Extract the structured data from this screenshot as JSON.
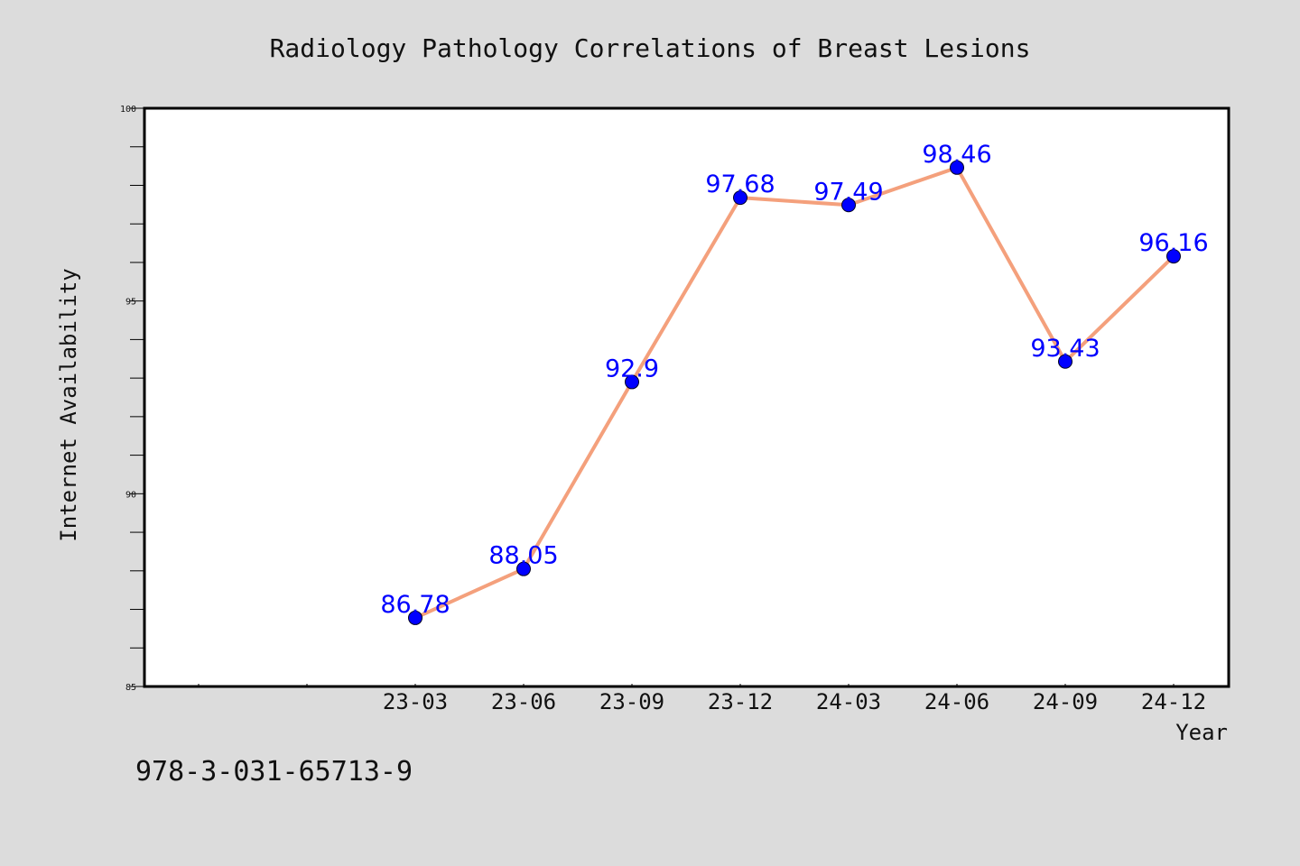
{
  "chart_data": {
    "type": "line",
    "title": "Radiology Pathology Correlations of Breast Lesions",
    "xlabel": "Year",
    "ylabel": "Internet Availability",
    "categories": [
      "23-03",
      "23-06",
      "23-09",
      "23-12",
      "24-03",
      "24-06",
      "24-09",
      "24-12"
    ],
    "data_labels": [
      "86.78",
      "88.05",
      "92.9",
      "97.68",
      "97.49",
      "98.46",
      "93.43",
      "96.16"
    ],
    "series": [
      {
        "values": [
          86.78,
          88.05,
          92.9,
          97.68,
          97.49,
          98.46,
          93.43,
          96.16
        ]
      }
    ],
    "ylim": [
      85,
      100
    ],
    "yticks": [
      "85",
      "90",
      "95",
      "100"
    ],
    "grid": false,
    "legend": "none",
    "colors": {
      "line": "#f4a07c",
      "marker": "#0000ff",
      "label": "#0000ff",
      "background": "#dcdcdc",
      "plot_background": "#ffffff"
    }
  },
  "footer": {
    "code": "978-3-031-65713-9"
  }
}
